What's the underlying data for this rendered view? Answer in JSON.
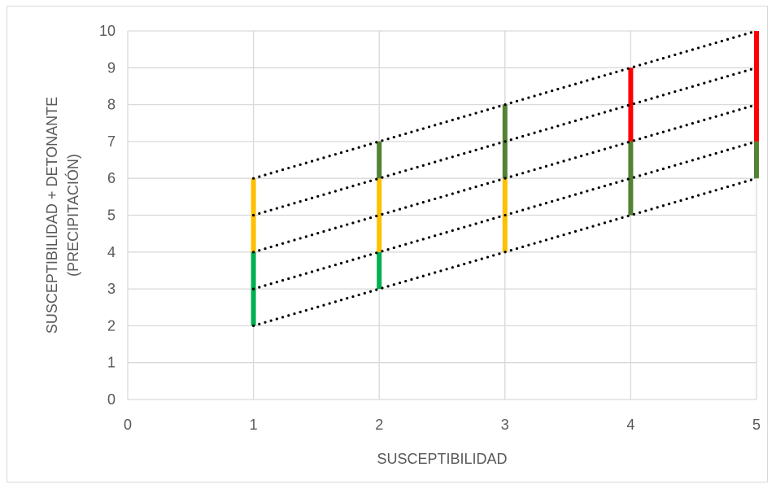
{
  "chart_data": {
    "type": "line",
    "xlabel": "SUSCEPTIBILIDAD",
    "ylabel_lines": [
      "SUSCEPTIBILIDAD + DETONANTE",
      "(PRECIPITACIÓN)"
    ],
    "xlim": [
      0,
      5
    ],
    "ylim": [
      0,
      10
    ],
    "x_ticks": [
      0,
      1,
      2,
      3,
      4,
      5
    ],
    "y_ticks": [
      0,
      1,
      2,
      3,
      4,
      5,
      6,
      7,
      8,
      9,
      10
    ],
    "grid": true,
    "legend": "none",
    "colors": {
      "green": "#00b050",
      "yellow": "#ffc000",
      "dark_green": "#548235",
      "red": "#ff0000",
      "dotted": "#000000",
      "grid": "#d9d9d9",
      "text": "#595959"
    },
    "vertical_segments": [
      {
        "x": 1,
        "y0": 2,
        "y1": 4,
        "color": "green"
      },
      {
        "x": 1,
        "y0": 4,
        "y1": 6,
        "color": "yellow"
      },
      {
        "x": 2,
        "y0": 3,
        "y1": 4,
        "color": "green"
      },
      {
        "x": 2,
        "y0": 4,
        "y1": 6,
        "color": "yellow"
      },
      {
        "x": 2,
        "y0": 6,
        "y1": 7,
        "color": "dark_green"
      },
      {
        "x": 3,
        "y0": 4,
        "y1": 6,
        "color": "yellow"
      },
      {
        "x": 3,
        "y0": 6,
        "y1": 8,
        "color": "dark_green"
      },
      {
        "x": 4,
        "y0": 5,
        "y1": 7,
        "color": "dark_green"
      },
      {
        "x": 4,
        "y0": 7,
        "y1": 9,
        "color": "red"
      },
      {
        "x": 5,
        "y0": 6,
        "y1": 7,
        "color": "dark_green"
      },
      {
        "x": 5,
        "y0": 7,
        "y1": 10,
        "color": "red"
      }
    ],
    "series": [
      {
        "x": [
          1,
          2,
          3,
          4,
          5
        ],
        "y": [
          2,
          3,
          4,
          5,
          6
        ]
      },
      {
        "x": [
          1,
          2,
          3,
          4,
          5
        ],
        "y": [
          3,
          4,
          5,
          6,
          7
        ]
      },
      {
        "x": [
          1,
          2,
          3,
          4,
          5
        ],
        "y": [
          4,
          5,
          6,
          7,
          8
        ]
      },
      {
        "x": [
          1,
          2,
          3,
          4,
          5
        ],
        "y": [
          5,
          6,
          7,
          8,
          9
        ]
      },
      {
        "x": [
          1,
          2,
          3,
          4,
          5
        ],
        "y": [
          6,
          7,
          8,
          9,
          10
        ]
      }
    ]
  }
}
